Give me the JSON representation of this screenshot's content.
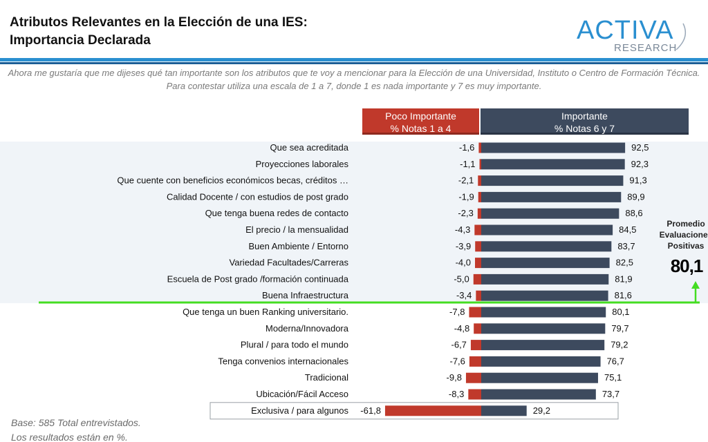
{
  "header": {
    "title_line1": "Atributos Relevantes en la Elección de una IES:",
    "title_line2": "Importancia Declarada",
    "logo_main": "ACTIVA",
    "logo_sub": "RESEARCH"
  },
  "question": "Ahora me gustaría que me dijeses qué tan importante son los atributos que te voy a mencionar para la Elección de una Universidad, Instituto o Centro de Formación Técnica. Para contestar utiliza una escala de 1 a 7, donde 1 es nada importante y 7 es muy importante.",
  "columns": {
    "negative": {
      "title": "Poco Importante",
      "subtitle": "% Notas 1 a 4",
      "color": "#c0392b"
    },
    "positive": {
      "title": "Importante",
      "subtitle": "% Notas 6 y 7",
      "color": "#3d4a5e"
    }
  },
  "average": {
    "label_line1": "Promedio",
    "label_line2": "Evaluaciones",
    "label_line3": "Positivas",
    "value": "80,1",
    "line_color": "#44dd22"
  },
  "chart_data": {
    "type": "bar",
    "orientation": "diverging-horizontal",
    "categories": [
      "Que sea acreditada",
      "Proyecciones laborales",
      "Que cuente con beneficios económicos becas, créditos …",
      "Calidad Docente / con estudios de post grado",
      "Que tenga buena redes de contacto",
      "El precio / la mensualidad",
      "Buen Ambiente / Entorno",
      "Variedad Facultades/Carreras",
      "Escuela de Post grado /formación continuada",
      "Buena Infraestructura",
      "Que tenga un buen Ranking universitario.",
      "Moderna/Innovadora",
      "Plural / para todo el mundo",
      "Tenga convenios internacionales",
      "Tradicional",
      "Ubicación/Fácil Acceso",
      "Exclusiva / para algunos"
    ],
    "series": [
      {
        "name": "Poco Importante % Notas 1 a 4",
        "values": [
          -1.6,
          -1.1,
          -2.1,
          -1.9,
          -2.3,
          -4.3,
          -3.9,
          -4.0,
          -5.0,
          -3.4,
          -7.8,
          -4.8,
          -6.7,
          -7.6,
          -9.8,
          -8.3,
          -61.8
        ],
        "labels": [
          "-1,6",
          "-1,1",
          "-2,1",
          "-1,9",
          "-2,3",
          "-4,3",
          "-3,9",
          "-4,0",
          "-5,0",
          "-3,4",
          "-7,8",
          "-4,8",
          "-6,7",
          "-7,6",
          "-9,8",
          "-8,3",
          "-61,8"
        ],
        "color": "#c0392b"
      },
      {
        "name": "Importante % Notas 6 y 7",
        "values": [
          92.5,
          92.3,
          91.3,
          89.9,
          88.6,
          84.5,
          83.7,
          82.5,
          81.9,
          81.6,
          80.1,
          79.7,
          79.2,
          76.7,
          75.1,
          73.7,
          29.2
        ],
        "labels": [
          "92,5",
          "92,3",
          "91,3",
          "89,9",
          "88,6",
          "84,5",
          "83,7",
          "82,5",
          "81,9",
          "81,6",
          "80,1",
          "79,7",
          "79,2",
          "76,7",
          "75,1",
          "73,7",
          "29,2"
        ],
        "color": "#3d4a5e"
      }
    ],
    "reference_line": 80.1,
    "highlighted_category": "Exclusiva / para algunos"
  },
  "footnote": {
    "line1": "Base: 585 Total entrevistados.",
    "line2": "Los resultados están en %."
  }
}
